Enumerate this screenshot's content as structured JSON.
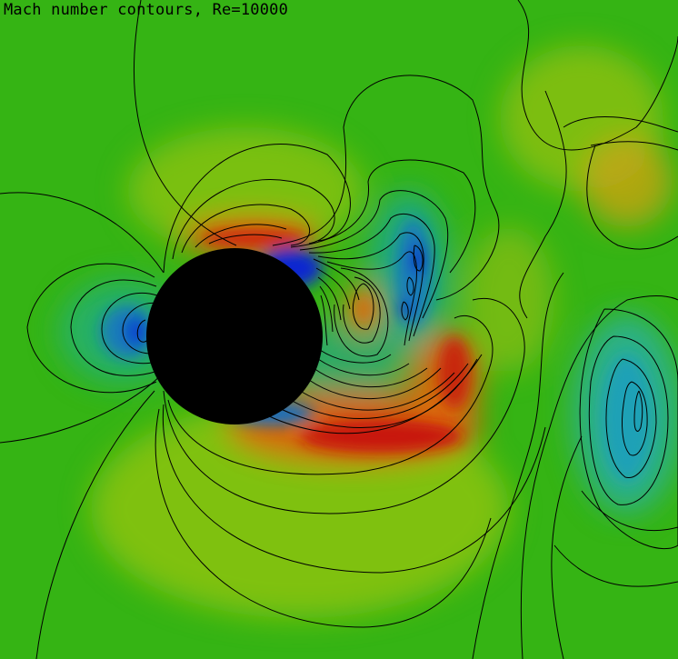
{
  "title": "Mach number contours, Re=10000",
  "colors": {
    "background_green": "#35b414",
    "obstacle": "#000000",
    "contour_line": "#000000",
    "high_mach": "#d01808",
    "low_mach": "#0820c8"
  }
}
